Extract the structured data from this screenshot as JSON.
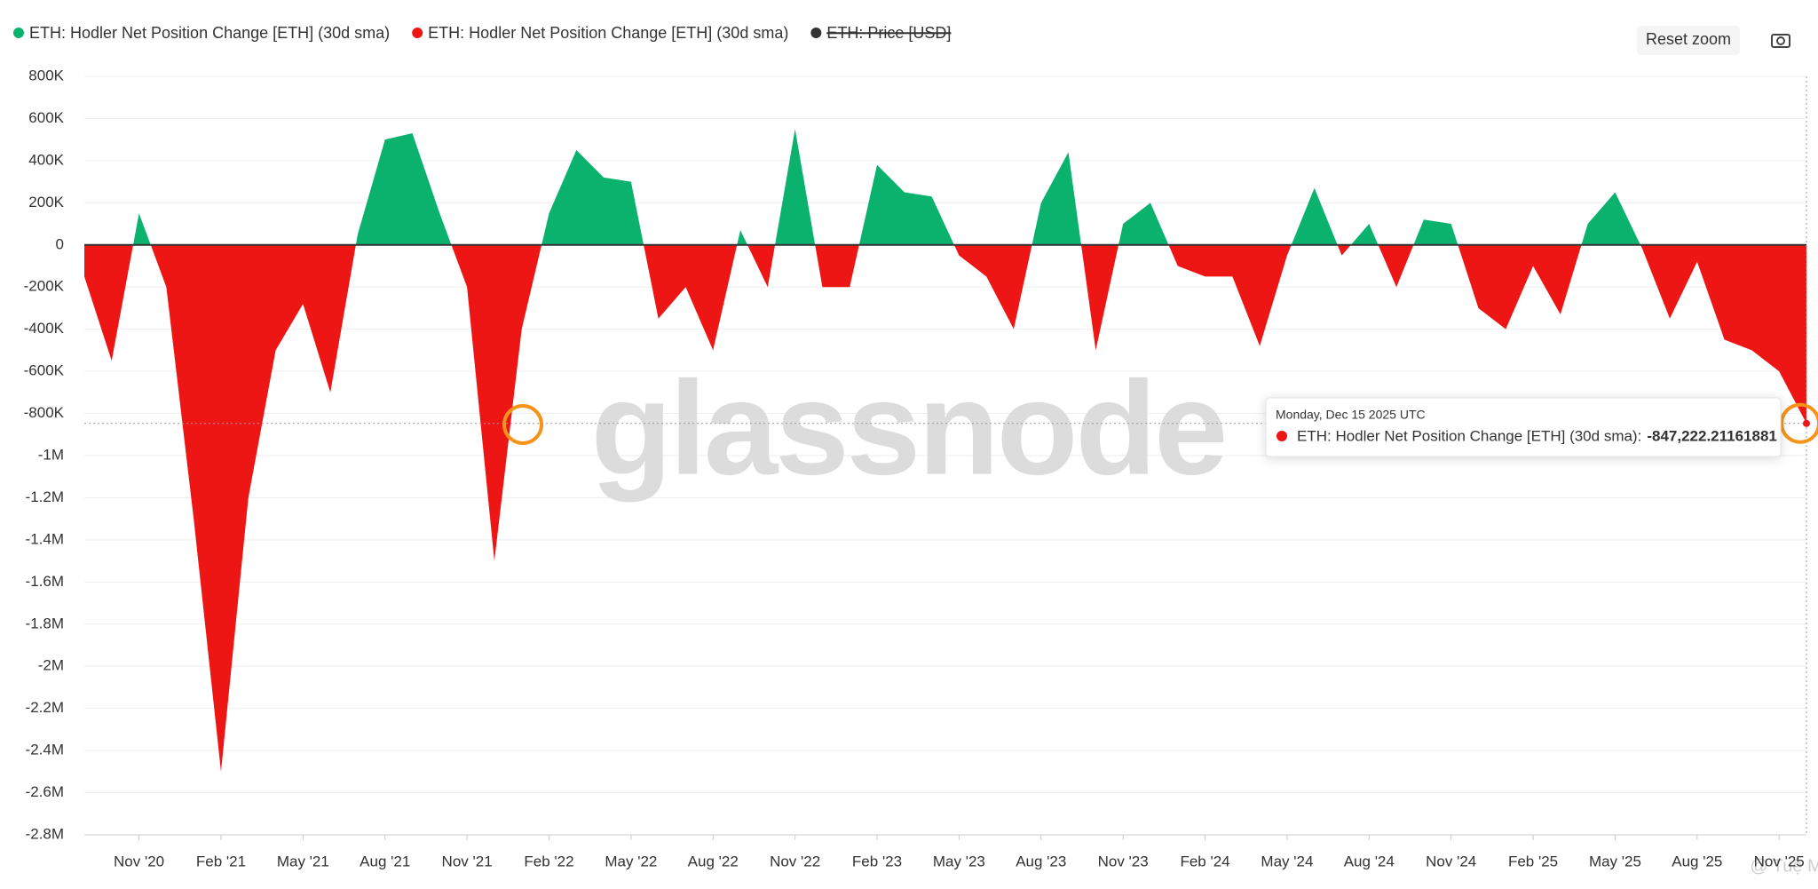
{
  "chart_data": {
    "type": "area",
    "legend": [
      {
        "name": "ETH: Hodler Net Position Change [ETH] (30d sma)",
        "color": "#0bb26e"
      },
      {
        "name": "ETH: Hodler Net Position Change [ETH] (30d sma)",
        "color": "#ee1515"
      },
      {
        "name": "ETH: Price [USD]",
        "color": "#333333",
        "hidden": true
      }
    ],
    "x": [
      "2020-09",
      "2020-10",
      "2020-11",
      "2020-12",
      "2021-01",
      "2021-02",
      "2021-03",
      "2021-04",
      "2021-05",
      "2021-06",
      "2021-07",
      "2021-08",
      "2021-09",
      "2021-10",
      "2021-11",
      "2021-12",
      "2022-01",
      "2022-02",
      "2022-03",
      "2022-04",
      "2022-05",
      "2022-06",
      "2022-07",
      "2022-08",
      "2022-09",
      "2022-10",
      "2022-11",
      "2022-12",
      "2023-01",
      "2023-02",
      "2023-03",
      "2023-04",
      "2023-05",
      "2023-06",
      "2023-07",
      "2023-08",
      "2023-09",
      "2023-10",
      "2023-11",
      "2023-12",
      "2024-01",
      "2024-02",
      "2024-03",
      "2024-04",
      "2024-05",
      "2024-06",
      "2024-07",
      "2024-08",
      "2024-09",
      "2024-10",
      "2024-11",
      "2024-12",
      "2025-01",
      "2025-02",
      "2025-03",
      "2025-04",
      "2025-05",
      "2025-06",
      "2025-07",
      "2025-08",
      "2025-09",
      "2025-10",
      "2025-11",
      "2025-12"
    ],
    "values": [
      -150000,
      -550000,
      150000,
      -200000,
      -1300000,
      -2500000,
      -1200000,
      -500000,
      -280000,
      -700000,
      50000,
      500000,
      530000,
      150000,
      -200000,
      -1500000,
      -400000,
      150000,
      450000,
      320000,
      300000,
      -350000,
      -200000,
      -500000,
      70000,
      -200000,
      550000,
      -200000,
      -200000,
      380000,
      250000,
      230000,
      -50000,
      -150000,
      -400000,
      200000,
      440000,
      -500000,
      100000,
      200000,
      -100000,
      -150000,
      -150000,
      -480000,
      -50000,
      270000,
      -50000,
      100000,
      -200000,
      120000,
      100000,
      -300000,
      -400000,
      -100000,
      -330000,
      100000,
      250000,
      -20000,
      -350000,
      -80000,
      -450000,
      -500000,
      -600000,
      -847222.21161881
    ],
    "xlim": [
      "2020-09",
      "2025-12"
    ],
    "xticks": [
      {
        "value": "2020-11",
        "label": "Nov '20"
      },
      {
        "value": "2021-02",
        "label": "Feb '21"
      },
      {
        "value": "2021-05",
        "label": "May '21"
      },
      {
        "value": "2021-08",
        "label": "Aug '21"
      },
      {
        "value": "2021-11",
        "label": "Nov '21"
      },
      {
        "value": "2022-02",
        "label": "Feb '22"
      },
      {
        "value": "2022-05",
        "label": "May '22"
      },
      {
        "value": "2022-08",
        "label": "Aug '22"
      },
      {
        "value": "2022-11",
        "label": "Nov '22"
      },
      {
        "value": "2023-02",
        "label": "Feb '23"
      },
      {
        "value": "2023-05",
        "label": "May '23"
      },
      {
        "value": "2023-08",
        "label": "Aug '23"
      },
      {
        "value": "2023-11",
        "label": "Nov '23"
      },
      {
        "value": "2024-02",
        "label": "Feb '24"
      },
      {
        "value": "2024-05",
        "label": "May '24"
      },
      {
        "value": "2024-08",
        "label": "Aug '24"
      },
      {
        "value": "2024-11",
        "label": "Nov '24"
      },
      {
        "value": "2025-02",
        "label": "Feb '25"
      },
      {
        "value": "2025-05",
        "label": "May '25"
      },
      {
        "value": "2025-08",
        "label": "Aug '25"
      },
      {
        "value": "2025-11",
        "label": "Nov '25"
      }
    ],
    "ylim": [
      -2800000,
      800000
    ],
    "yticks": [
      {
        "value": 800000,
        "label": "800K"
      },
      {
        "value": 600000,
        "label": "600K"
      },
      {
        "value": 400000,
        "label": "400K"
      },
      {
        "value": 200000,
        "label": "200K"
      },
      0,
      {
        "value": -200000,
        "label": "-200K"
      },
      {
        "value": -400000,
        "label": "-400K"
      },
      {
        "value": -600000,
        "label": "-600K"
      },
      {
        "value": -800000,
        "label": "-800K"
      },
      {
        "value": -1000000,
        "label": "-1M"
      },
      {
        "value": -1200000,
        "label": "-1.2M"
      },
      {
        "value": -1400000,
        "label": "-1.4M"
      },
      {
        "value": -1600000,
        "label": "-1.6M"
      },
      {
        "value": -1800000,
        "label": "-1.8M"
      },
      {
        "value": -2000000,
        "label": "-2M"
      },
      {
        "value": -2200000,
        "label": "-2.2M"
      },
      {
        "value": -2400000,
        "label": "-2.4M"
      },
      {
        "value": -2600000,
        "label": "-2.6M"
      },
      {
        "value": -2800000,
        "label": "-2.8M"
      }
    ],
    "grid": true,
    "tooltip": {
      "date": "Monday, Dec 15 2025 UTC",
      "series_label": "ETH: Hodler Net Position Change [ETH] (30d sma):",
      "value_label": "-847,222.21161881"
    },
    "reset_button": "Reset zoom",
    "watermark": "glassnode",
    "credit": "@ Tuệ Mẫn"
  }
}
